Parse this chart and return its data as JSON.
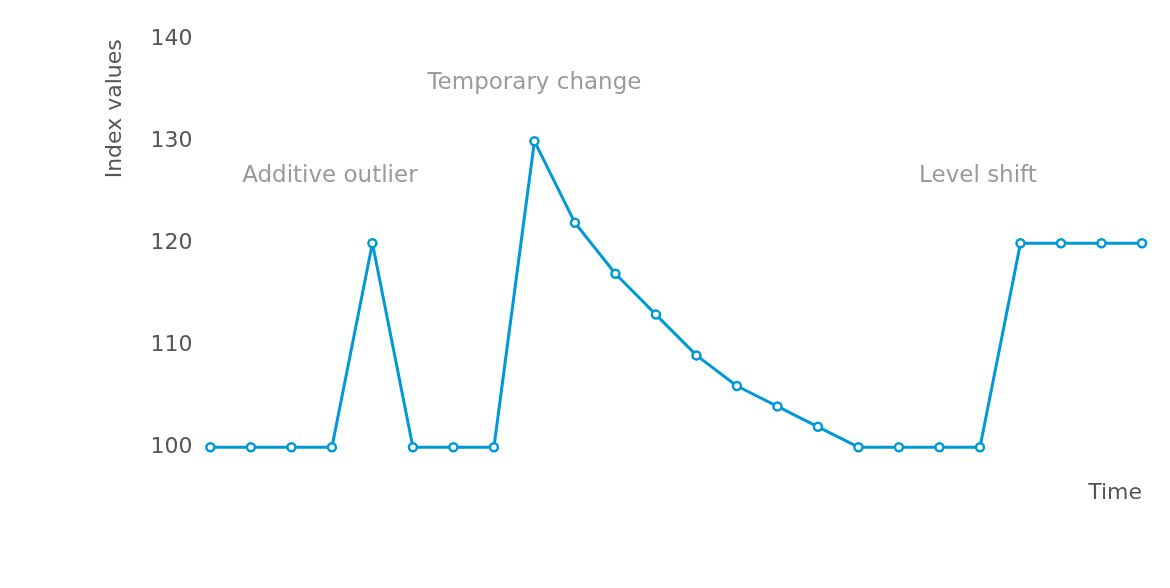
{
  "chart_data": {
    "type": "line",
    "xlabel": "Time",
    "ylabel": "Index values",
    "categories": [
      null,
      null,
      null,
      null,
      null,
      null,
      null,
      null,
      null,
      null,
      null,
      null,
      null,
      null,
      null,
      null,
      null,
      null,
      null,
      null,
      null,
      null,
      null,
      null
    ],
    "series": [
      {
        "color": "#0099d8",
        "values": [
          100,
          100,
          100,
          100,
          120,
          100,
          100,
          100,
          130,
          122,
          117,
          113,
          109,
          106,
          104,
          102,
          100,
          100,
          100,
          100,
          120,
          120,
          120,
          120
        ]
      }
    ],
    "ylim": [
      100,
      140
    ],
    "yticks": [
      100,
      110,
      120,
      130,
      140
    ],
    "annotations": [
      "Additive outlier",
      "Temporary change",
      "Level shift"
    ],
    "grid": false,
    "legend": false,
    "marker": "circle",
    "line_style": "solid"
  }
}
